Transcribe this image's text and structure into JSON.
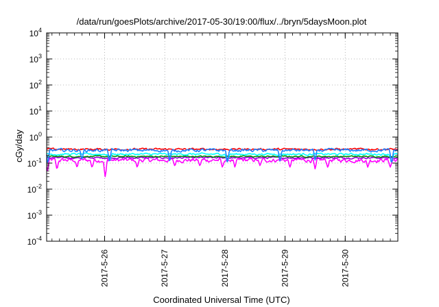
{
  "chart_data": {
    "type": "line",
    "title": "/data/run/goesPlots/archive/2017-05-30/19:00/flux/../bryn/5daysMoon.plot",
    "xlabel": "Coordinated Universal Time (UTC)",
    "ylabel": "cGy/day",
    "x_range": [
      "2017-05-25T00:52",
      "2017-05-30T21:00"
    ],
    "x_ticks": [
      "2017-5-26",
      "2017-5-27",
      "2017-5-28",
      "2017-5-29",
      "2017-5-30"
    ],
    "y_scale": "log",
    "ylim": [
      0.0001,
      10000
    ],
    "y_ticks": [
      {
        "base": "10",
        "exp": "-4"
      },
      {
        "base": "10",
        "exp": "-3"
      },
      {
        "base": "10",
        "exp": "-2"
      },
      {
        "base": "10",
        "exp": "-1"
      },
      {
        "base": "10",
        "exp": "0"
      },
      {
        "base": "10",
        "exp": "1"
      },
      {
        "base": "10",
        "exp": "2"
      },
      {
        "base": "10",
        "exp": "3"
      },
      {
        "base": "10",
        "exp": "4"
      }
    ],
    "grid": true,
    "series": [
      {
        "color": "#ff00ff",
        "level": 0.13,
        "jitter": 0.3,
        "dips": [
          {
            "t": "2017-05-25T01:10",
            "v": 0.05
          },
          {
            "t": "2017-05-25T05:00",
            "v": 0.06
          },
          {
            "t": "2017-05-25T13:00",
            "v": 0.07
          },
          {
            "t": "2017-05-25T19:00",
            "v": 0.07
          },
          {
            "t": "2017-05-26T00:15",
            "v": 0.03
          },
          {
            "t": "2017-05-26T13:00",
            "v": 0.07
          },
          {
            "t": "2017-05-27T04:00",
            "v": 0.08
          },
          {
            "t": "2017-05-27T14:00",
            "v": 0.08
          },
          {
            "t": "2017-05-27T23:00",
            "v": 0.07
          },
          {
            "t": "2017-05-28T04:00",
            "v": 0.07
          },
          {
            "t": "2017-05-28T14:00",
            "v": 0.08
          },
          {
            "t": "2017-05-29T02:00",
            "v": 0.07
          },
          {
            "t": "2017-05-29T12:00",
            "v": 0.06
          },
          {
            "t": "2017-05-29T17:00",
            "v": 0.07
          },
          {
            "t": "2017-05-30T09:00",
            "v": 0.07
          },
          {
            "t": "2017-05-30T18:00",
            "v": 0.07
          }
        ]
      },
      {
        "color": "#9400d3",
        "level": 0.16,
        "jitter": 0.12,
        "dips": []
      },
      {
        "color": "#008b00",
        "level": 0.18,
        "jitter": 0.1,
        "dips": []
      },
      {
        "color": "#00ffff",
        "level": 0.22,
        "jitter": 0.14,
        "dips": [
          {
            "t": "2017-05-26T02:00",
            "v": 0.12
          },
          {
            "t": "2017-05-28T01:00",
            "v": 0.11
          },
          {
            "t": "2017-05-30T18:30",
            "v": 0.11
          }
        ]
      },
      {
        "color": "#ff0000",
        "level": 0.34,
        "jitter": 0.14,
        "dips": []
      },
      {
        "color": "#1e7fff",
        "level": 0.31,
        "jitter": 0.22,
        "dips": [
          {
            "t": "2017-05-25T01:20",
            "v": 0.1
          },
          {
            "t": "2017-05-25T15:00",
            "v": 0.14
          },
          {
            "t": "2017-05-26T02:00",
            "v": 0.12
          },
          {
            "t": "2017-05-27T02:00",
            "v": 0.12
          },
          {
            "t": "2017-05-28T01:00",
            "v": 0.11
          },
          {
            "t": "2017-05-28T22:00",
            "v": 0.12
          },
          {
            "t": "2017-05-29T12:00",
            "v": 0.13
          },
          {
            "t": "2017-05-30T18:30",
            "v": 0.1
          }
        ]
      }
    ]
  }
}
